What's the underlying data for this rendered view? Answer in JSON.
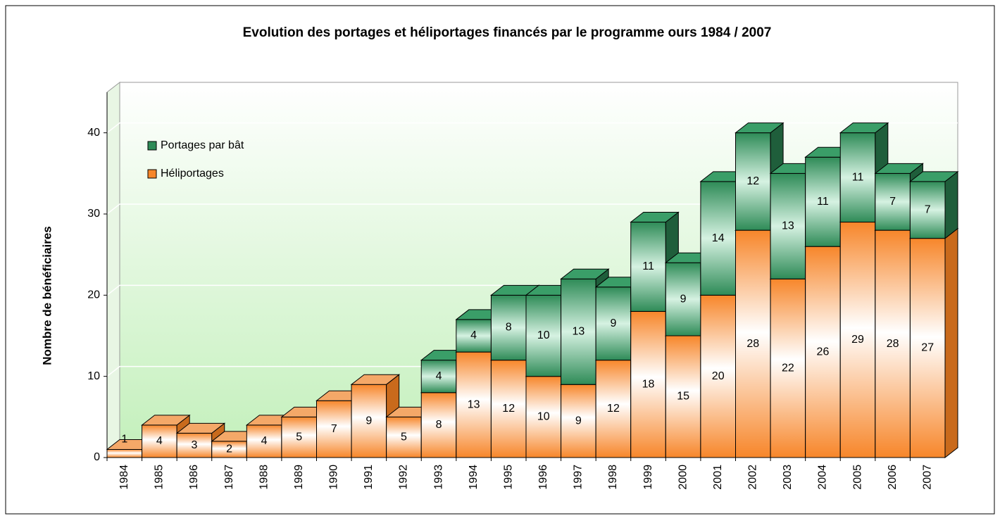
{
  "chart_data": {
    "type": "stacked_bar_3d",
    "title": "Evolution des portages et héliportages financés par le programme ours 1984 / 2007",
    "y_label": "Nombre de bénéficiaires",
    "categories": [
      "1984",
      "1985",
      "1986",
      "1987",
      "1988",
      "1989",
      "1990",
      "1991",
      "1992",
      "1993",
      "1994",
      "1995",
      "1996",
      "1997",
      "1998",
      "1999",
      "2000",
      "2001",
      "2002",
      "2003",
      "2004",
      "2005",
      "2006",
      "2007"
    ],
    "series": [
      {
        "name": "Héliportages",
        "color": "#f7862a",
        "values": [
          1,
          4,
          3,
          2,
          4,
          5,
          7,
          9,
          5,
          8,
          13,
          12,
          10,
          9,
          12,
          18,
          15,
          20,
          28,
          22,
          26,
          29,
          28,
          27
        ]
      },
      {
        "name": "Portages par bât",
        "color": "#2e8b57",
        "values": [
          null,
          null,
          null,
          null,
          null,
          null,
          null,
          null,
          null,
          4,
          4,
          8,
          10,
          13,
          9,
          11,
          9,
          14,
          12,
          13,
          11,
          11,
          7,
          7
        ]
      }
    ],
    "ylim": [
      0,
      45
    ],
    "yticks": [
      0,
      10,
      20,
      30,
      40
    ],
    "grid": true,
    "legend": "upper left"
  }
}
